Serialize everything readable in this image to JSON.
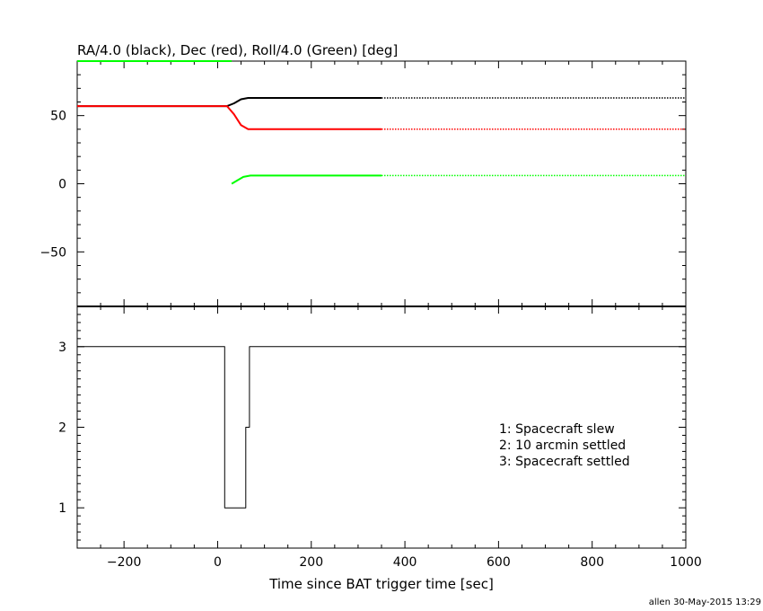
{
  "chart_data": [
    {
      "type": "line",
      "title": "RA/4.0 (black), Dec (red), Roll/4.0 (Green) [deg]",
      "xlim": [
        -300,
        1000
      ],
      "ylim": [
        -90,
        90
      ],
      "yticks": [
        -50,
        0,
        50
      ],
      "xticks": [
        -200,
        0,
        200,
        400,
        600,
        800,
        1000
      ],
      "series": [
        {
          "color": "#000000",
          "x": [
            -300,
            20,
            35,
            50,
            65,
            80,
            350
          ],
          "y": [
            57,
            57,
            59,
            62,
            63,
            63,
            63
          ],
          "dotted_x": [
            350,
            1000
          ],
          "dotted_y": [
            63,
            63
          ]
        },
        {
          "color": "#ff0000",
          "x": [
            -300,
            20,
            35,
            50,
            65,
            80,
            350
          ],
          "y": [
            57,
            57,
            51,
            43,
            40,
            40,
            40
          ],
          "dotted_x": [
            350,
            1000
          ],
          "dotted_y": [
            40,
            40
          ]
        },
        {
          "color": "#00ff00",
          "x": [
            -300,
            30
          ],
          "y": [
            90,
            90
          ]
        },
        {
          "color": "#00ff00",
          "x": [
            30,
            45,
            55,
            70,
            350
          ],
          "y": [
            0,
            3,
            5,
            6,
            6
          ],
          "dotted_x": [
            350,
            1000
          ],
          "dotted_y": [
            6,
            6
          ]
        }
      ]
    },
    {
      "type": "line",
      "xlabel": "Time since BAT trigger time [sec]",
      "xlim": [
        -300,
        1000
      ],
      "ylim": [
        0.5,
        3.5
      ],
      "yticks": [
        1,
        2,
        3
      ],
      "xticks": [
        -200,
        0,
        200,
        400,
        600,
        800,
        1000
      ],
      "step": true,
      "series": [
        {
          "color": "#000000",
          "x": [
            -300,
            15,
            15,
            60,
            60,
            68,
            68,
            1000
          ],
          "y": [
            3,
            3,
            1,
            1,
            2,
            2,
            3,
            3
          ]
        }
      ],
      "legend": [
        "1: Spacecraft slew",
        "2: 10 arcmin settled",
        "3: Spacecraft settled"
      ]
    }
  ],
  "footer": "allen 30-May-2015 13:29"
}
